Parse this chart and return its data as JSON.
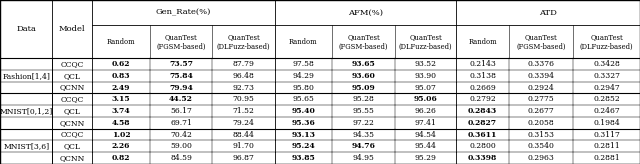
{
  "row_groups": [
    {
      "group": "Fashion[1,4]",
      "rows": [
        {
          "model": "CCQC",
          "values": [
            "0.62",
            "73.57",
            "87.79",
            "97.58",
            "93.65",
            "93.52",
            "0.2143",
            "0.3376",
            "0.3428"
          ],
          "bold": [
            2,
            3,
            6
          ]
        },
        {
          "model": "QCL",
          "values": [
            "0.83",
            "75.84",
            "96.48",
            "94.29",
            "93.60",
            "93.90",
            "0.3138",
            "0.3394",
            "0.3327"
          ],
          "bold": [
            2,
            3,
            6
          ]
        },
        {
          "model": "QCNN",
          "values": [
            "2.49",
            "79.94",
            "92.73",
            "95.80",
            "95.09",
            "95.07",
            "0.2669",
            "0.2924",
            "0.2947"
          ],
          "bold": [
            2,
            3,
            6
          ]
        }
      ]
    },
    {
      "group": "MNIST[0,1,2]",
      "rows": [
        {
          "model": "CCQC",
          "values": [
            "3.15",
            "44.52",
            "70.95",
            "95.65",
            "95.28",
            "95.06",
            "0.2792",
            "0.2775",
            "0.2852"
          ],
          "bold": [
            2,
            3,
            7
          ]
        },
        {
          "model": "QCL",
          "values": [
            "3.74",
            "56.17",
            "71.52",
            "95.40",
            "95.55",
            "96.26",
            "0.2843",
            "0.2677",
            "0.2467"
          ],
          "bold": [
            2,
            5,
            8
          ]
        },
        {
          "model": "QCNN",
          "values": [
            "4.58",
            "69.71",
            "79.24",
            "95.36",
            "97.22",
            "97.41",
            "0.2827",
            "0.2058",
            "0.1984"
          ],
          "bold": [
            2,
            5,
            8
          ]
        }
      ]
    },
    {
      "group": "MNIST[3,6]",
      "rows": [
        {
          "model": "CCQC",
          "values": [
            "1.02",
            "70.42",
            "88.44",
            "93.13",
            "94.35",
            "94.54",
            "0.3611",
            "0.3153",
            "0.3117"
          ],
          "bold": [
            2,
            5,
            8
          ]
        },
        {
          "model": "QCL",
          "values": [
            "2.26",
            "59.00",
            "91.70",
            "95.24",
            "94.76",
            "95.44",
            "0.2800",
            "0.3540",
            "0.2811"
          ],
          "bold": [
            2,
            5,
            6
          ]
        },
        {
          "model": "QCNN",
          "values": [
            "0.82",
            "84.59",
            "96.87",
            "93.85",
            "94.95",
            "95.29",
            "0.3398",
            "0.2963",
            "0.2881"
          ],
          "bold": [
            2,
            5,
            8
          ]
        }
      ]
    }
  ]
}
